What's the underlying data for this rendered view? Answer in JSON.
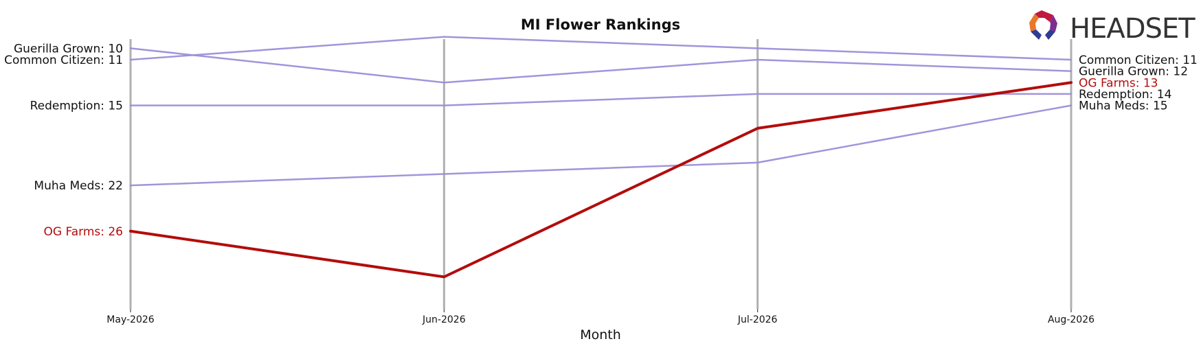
{
  "chart_data": {
    "type": "line",
    "title": "MI Flower Rankings",
    "xlabel": "Month",
    "ylabel": "",
    "categories": [
      "May-2026",
      "Jun-2026",
      "Jul-2026",
      "Aug-2026"
    ],
    "y_inverted": true,
    "ylim": [
      32.8,
      9.2
    ],
    "grid": "vertical lines at each month",
    "legend": "none; series labelled at line ends",
    "series": [
      {
        "name": "Guerilla Grown",
        "values": [
          10,
          13,
          11,
          12
        ],
        "color": "#9b8fd9",
        "highlight": false
      },
      {
        "name": "Common Citizen",
        "values": [
          11,
          9,
          10,
          11
        ],
        "color": "#9b8fd9",
        "highlight": false
      },
      {
        "name": "Redemption",
        "values": [
          15,
          15,
          14,
          14
        ],
        "color": "#9b8fd9",
        "highlight": false
      },
      {
        "name": "Muha Meds",
        "values": [
          22,
          21,
          20,
          15
        ],
        "color": "#9b8fd9",
        "highlight": false
      },
      {
        "name": "OG Farms",
        "values": [
          26,
          30,
          17,
          13
        ],
        "color": "#b30c0c",
        "highlight": true
      }
    ],
    "start_labels": [
      {
        "text": "Guerilla Grown: 10",
        "series": "Guerilla Grown"
      },
      {
        "text": "Common Citizen: 11",
        "series": "Common Citizen"
      },
      {
        "text": "Redemption: 15",
        "series": "Redemption"
      },
      {
        "text": "Muha Meds: 22",
        "series": "Muha Meds"
      },
      {
        "text": "OG Farms: 26",
        "series": "OG Farms"
      }
    ],
    "end_labels": [
      {
        "text": "Common Citizen: 11",
        "series": "Common Citizen"
      },
      {
        "text": "Guerilla Grown: 12",
        "series": "Guerilla Grown"
      },
      {
        "text": "OG Farms: 13",
        "series": "OG Farms"
      },
      {
        "text": "Redemption: 14",
        "series": "Redemption"
      },
      {
        "text": "Muha Meds: 15",
        "series": "Muha Meds"
      }
    ]
  },
  "logo": {
    "text": "HEADSET",
    "icon": "headset-logo-icon",
    "colors": [
      "#c0183f",
      "#e8782a",
      "#7d2d8f",
      "#2f3d91"
    ]
  },
  "colors": {
    "grid": "#b0b0b0",
    "text": "#111111",
    "highlight_text": "#b30c0c"
  }
}
